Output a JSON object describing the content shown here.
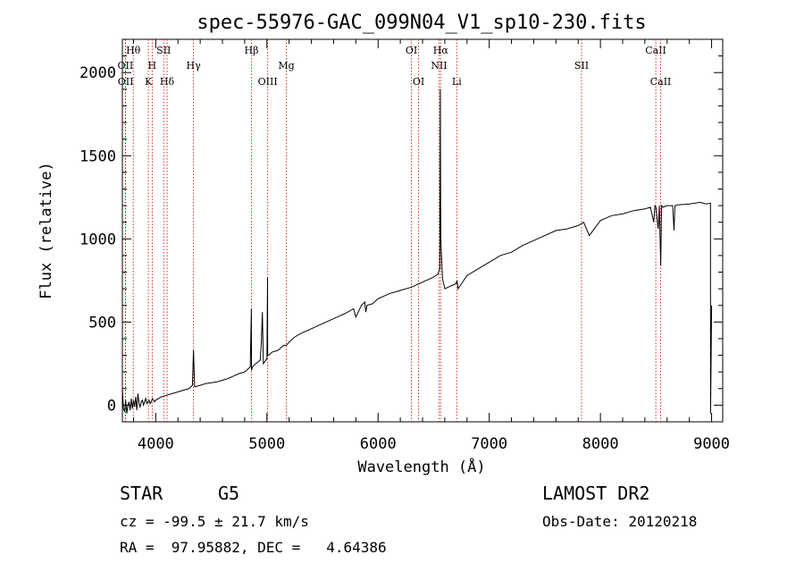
{
  "chart_data": {
    "type": "line",
    "title": "spec-55976-GAC_099N04_V1_sp10-230.fits",
    "xlabel": "Wavelength (Å)",
    "ylabel": "Flux (relative)",
    "xlim": [
      3700,
      9100
    ],
    "ylim": [
      -100,
      2200
    ],
    "xticks": [
      4000,
      5000,
      6000,
      7000,
      8000,
      9000
    ],
    "yticks": [
      0,
      500,
      1000,
      1500,
      2000
    ],
    "grid": false,
    "line_color": "#000000",
    "marker_color": "#cc0000",
    "series": [
      {
        "x": [
          3700,
          3710,
          3720,
          3730,
          3740,
          3750,
          3760,
          3770,
          3780,
          3790,
          3800,
          3810,
          3820,
          3830,
          3840,
          3850,
          3860,
          3870,
          3880,
          3890,
          3900,
          3910,
          3920,
          3930,
          3940,
          3950,
          3960,
          3970,
          3980,
          3990,
          4000,
          4050,
          4100,
          4150,
          4200,
          4250,
          4300,
          4330,
          4340,
          4350,
          4400,
          4450,
          4500,
          4550,
          4600,
          4650,
          4700,
          4750,
          4800,
          4850,
          4860,
          4861,
          4870,
          4900,
          4940,
          4950,
          4959,
          4968,
          5000,
          5006,
          5007,
          5015,
          5050,
          5100,
          5150,
          5175,
          5200,
          5250,
          5300,
          5400,
          5500,
          5600,
          5700,
          5780,
          5800,
          5850,
          5880,
          5890,
          5900,
          5950,
          6000,
          6100,
          6200,
          6300,
          6400,
          6500,
          6540,
          6555,
          6560,
          6562,
          6565,
          6570,
          6580,
          6600,
          6700,
          6710,
          6720,
          6800,
          6900,
          7000,
          7100,
          7200,
          7300,
          7400,
          7500,
          7600,
          7700,
          7800,
          7850,
          7900,
          8000,
          8100,
          8200,
          8300,
          8400,
          8450,
          8480,
          8490,
          8500,
          8520,
          8530,
          8542,
          8550,
          8560,
          8600,
          8650,
          8662,
          8670,
          8700,
          8800,
          8900,
          8950,
          8990,
          8991,
          9000
        ],
        "y": [
          100,
          -20,
          -40,
          30,
          -50,
          0,
          20,
          -30,
          40,
          -20,
          30,
          -10,
          50,
          -30,
          70,
          10,
          -10,
          20,
          30,
          0,
          20,
          40,
          10,
          20,
          30,
          10,
          20,
          40,
          30,
          20,
          30,
          50,
          60,
          70,
          80,
          90,
          100,
          120,
          330,
          110,
          120,
          130,
          135,
          140,
          150,
          160,
          175,
          190,
          200,
          230,
          580,
          210,
          230,
          250,
          270,
          380,
          560,
          250,
          280,
          770,
          300,
          300,
          320,
          330,
          360,
          360,
          380,
          410,
          430,
          460,
          490,
          520,
          550,
          580,
          530,
          600,
          620,
          560,
          600,
          610,
          640,
          670,
          690,
          710,
          740,
          770,
          790,
          820,
          1900,
          1200,
          1000,
          900,
          760,
          700,
          730,
          750,
          700,
          780,
          820,
          860,
          900,
          920,
          960,
          990,
          1020,
          1050,
          1060,
          1080,
          1100,
          1020,
          1110,
          1140,
          1150,
          1170,
          1180,
          1190,
          1100,
          1200,
          1190,
          1060,
          1200,
          840,
          1200,
          1190,
          1200,
          1200,
          1050,
          1200,
          1205,
          1210,
          1220,
          1210,
          1215,
          -50,
          600
        ]
      }
    ],
    "markers": [
      {
        "wavelength": 3727,
        "label": "OII",
        "row": 2
      },
      {
        "wavelength": 3729,
        "label": "OII",
        "row": 3
      },
      {
        "wavelength": 3798,
        "label": "Hθ",
        "row": 1
      },
      {
        "wavelength": 3934,
        "label": "K",
        "row": 3
      },
      {
        "wavelength": 3968,
        "label": "H",
        "row": 2
      },
      {
        "wavelength": 4072,
        "label": "SII",
        "row": 1
      },
      {
        "wavelength": 4102,
        "label": "Hδ",
        "row": 3
      },
      {
        "wavelength": 4340,
        "label": "Hγ",
        "row": 2
      },
      {
        "wavelength": 4861,
        "label": "Hβ",
        "row": 1
      },
      {
        "wavelength": 5007,
        "label": "OIII",
        "row": 3
      },
      {
        "wavelength": 5175,
        "label": "Mg",
        "row": 2
      },
      {
        "wavelength": 6300,
        "label": "OI",
        "row": 1
      },
      {
        "wavelength": 6364,
        "label": "OI",
        "row": 3
      },
      {
        "wavelength": 6548,
        "label": "NII",
        "row": 2
      },
      {
        "wavelength": 6563,
        "label": "Hα",
        "row": 1
      },
      {
        "wavelength": 6708,
        "label": "Li",
        "row": 3
      },
      {
        "wavelength": 7830,
        "label": "SII",
        "row": 2
      },
      {
        "wavelength": 8498,
        "label": "CaII",
        "row": 1
      },
      {
        "wavelength": 8542,
        "label": "CaII",
        "row": 3
      }
    ]
  },
  "info": {
    "class": "STAR",
    "subclass": "G5",
    "survey": "LAMOST DR2",
    "redshift": "cz = -99.5 ± 21.7 km/s",
    "obs_date": "Obs-Date: 20120218",
    "coords": "RA =  97.95882, DEC =   4.64386"
  }
}
